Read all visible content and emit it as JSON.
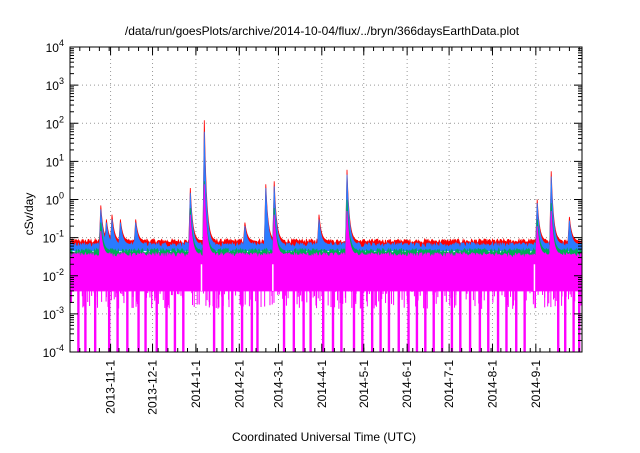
{
  "chart_data": {
    "type": "line",
    "title": "/data/run/goesPlots/archive/2014-10-04/flux/../bryn/366daysEarthData.plot",
    "xlabel": "Coordinated Universal Time (UTC)",
    "ylabel": "cSv/day",
    "yscale": "log",
    "ylim": [
      0.0001,
      10000
    ],
    "x_start": "2013-10-03",
    "x_end": "2014-10-04",
    "grid": true,
    "y_ticks": [
      {
        "base": "10",
        "exp": "-4",
        "value": 0.0001
      },
      {
        "base": "10",
        "exp": "-3",
        "value": 0.001
      },
      {
        "base": "10",
        "exp": "-2",
        "value": 0.01
      },
      {
        "base": "10",
        "exp": "-1",
        "value": 0.1
      },
      {
        "base": "10",
        "exp": "0",
        "value": 1
      },
      {
        "base": "10",
        "exp": "1",
        "value": 10
      },
      {
        "base": "10",
        "exp": "2",
        "value": 100
      },
      {
        "base": "10",
        "exp": "3",
        "value": 1000
      },
      {
        "base": "10",
        "exp": "4",
        "value": 10000
      }
    ],
    "x_ticks": [
      {
        "label": "2013-11-1",
        "date": "2013-11-01"
      },
      {
        "label": "2013-12-1",
        "date": "2013-12-01"
      },
      {
        "label": "2014-1-1",
        "date": "2014-01-01"
      },
      {
        "label": "2014-2-1",
        "date": "2014-02-01"
      },
      {
        "label": "2014-3-1",
        "date": "2014-03-01"
      },
      {
        "label": "2014-4-1",
        "date": "2014-04-01"
      },
      {
        "label": "2014-5-1",
        "date": "2014-05-01"
      },
      {
        "label": "2014-6-1",
        "date": "2014-06-01"
      },
      {
        "label": "2014-7-1",
        "date": "2014-07-01"
      },
      {
        "label": "2014-8-1",
        "date": "2014-08-01"
      },
      {
        "label": "2014-9-1",
        "date": "2014-09-01"
      }
    ],
    "series": [
      {
        "color": "#ff0000",
        "baseline": 0.08,
        "peaks": [
          {
            "date": "2013-10-25",
            "value": 0.7
          },
          {
            "date": "2013-10-29",
            "value": 0.3
          },
          {
            "date": "2013-11-02",
            "value": 0.4
          },
          {
            "date": "2013-11-08",
            "value": 0.3
          },
          {
            "date": "2013-11-19",
            "value": 0.3
          },
          {
            "date": "2013-12-28",
            "value": 2.0
          },
          {
            "date": "2014-01-07",
            "value": 120
          },
          {
            "date": "2014-02-05",
            "value": 0.25
          },
          {
            "date": "2014-02-20",
            "value": 2.5
          },
          {
            "date": "2014-02-26",
            "value": 3.0
          },
          {
            "date": "2014-03-30",
            "value": 0.4
          },
          {
            "date": "2014-04-19",
            "value": 6.0
          },
          {
            "date": "2014-09-02",
            "value": 1.0
          },
          {
            "date": "2014-09-12",
            "value": 5.5
          },
          {
            "date": "2014-09-25",
            "value": 0.35
          }
        ]
      },
      {
        "color": "#2a7bff",
        "baseline": 0.065,
        "peaks": [
          {
            "date": "2013-10-25",
            "value": 0.55
          },
          {
            "date": "2013-10-29",
            "value": 0.25
          },
          {
            "date": "2013-11-02",
            "value": 0.3
          },
          {
            "date": "2013-11-08",
            "value": 0.25
          },
          {
            "date": "2013-11-19",
            "value": 0.25
          },
          {
            "date": "2013-12-28",
            "value": 1.5
          },
          {
            "date": "2014-01-07",
            "value": 60
          },
          {
            "date": "2014-02-05",
            "value": 0.2
          },
          {
            "date": "2014-02-20",
            "value": 2.0
          },
          {
            "date": "2014-02-26",
            "value": 2.2
          },
          {
            "date": "2014-03-30",
            "value": 0.3
          },
          {
            "date": "2014-04-19",
            "value": 4.5
          },
          {
            "date": "2014-09-02",
            "value": 0.8
          },
          {
            "date": "2014-09-12",
            "value": 4.0
          },
          {
            "date": "2014-09-25",
            "value": 0.28
          }
        ]
      },
      {
        "color": "#00aa55",
        "baseline": 0.045,
        "peaks": [
          {
            "date": "2013-10-25",
            "value": 0.25
          },
          {
            "date": "2013-12-28",
            "value": 0.6
          },
          {
            "date": "2014-01-07",
            "value": 3.0
          },
          {
            "date": "2014-02-26",
            "value": 0.6
          },
          {
            "date": "2014-04-19",
            "value": 1.0
          },
          {
            "date": "2014-09-02",
            "value": 0.3
          },
          {
            "date": "2014-09-12",
            "value": 0.8
          }
        ]
      },
      {
        "color": "#ff00ff",
        "baseline": 0.035,
        "floor": 0.004,
        "dropouts_to": 0.0001,
        "peaks": [
          {
            "date": "2013-10-25",
            "value": 0.15
          },
          {
            "date": "2013-12-28",
            "value": 0.4
          },
          {
            "date": "2014-01-07",
            "value": 2.5
          },
          {
            "date": "2014-02-26",
            "value": 0.4
          },
          {
            "date": "2014-04-19",
            "value": 0.5
          },
          {
            "date": "2014-09-02",
            "value": 0.2
          },
          {
            "date": "2014-09-12",
            "value": 0.5
          }
        ]
      }
    ],
    "dropout_dates": [
      "2013-10-09",
      "2013-10-14",
      "2013-10-21",
      "2013-10-31",
      "2013-11-06",
      "2013-11-13",
      "2013-11-21",
      "2013-11-26",
      "2013-12-04",
      "2013-12-11",
      "2013-12-17",
      "2013-12-23",
      "2014-01-14",
      "2014-01-20",
      "2014-01-27",
      "2014-02-03",
      "2014-02-10",
      "2014-02-14",
      "2014-03-05",
      "2014-03-12",
      "2014-03-19",
      "2014-03-24",
      "2014-04-02",
      "2014-04-09",
      "2014-04-15",
      "2014-04-24",
      "2014-04-30",
      "2014-05-07",
      "2014-05-13",
      "2014-05-19",
      "2014-05-26",
      "2014-06-02",
      "2014-06-08",
      "2014-06-14",
      "2014-06-20",
      "2014-06-26",
      "2014-07-03",
      "2014-07-09",
      "2014-07-16",
      "2014-07-23",
      "2014-07-29",
      "2014-08-05",
      "2014-08-11",
      "2014-08-18",
      "2014-08-24",
      "2014-09-17",
      "2014-09-22",
      "2014-09-28",
      "2014-10-02"
    ]
  }
}
